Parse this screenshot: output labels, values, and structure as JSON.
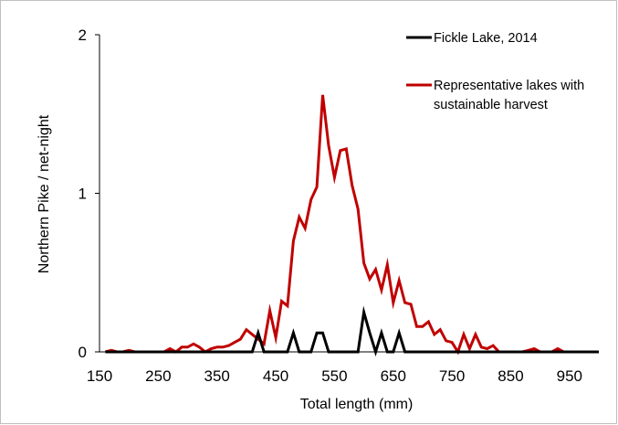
{
  "chart_data": {
    "type": "line",
    "title": "",
    "xlabel": "Total length (mm)",
    "ylabel": "Northern Pike / net-night",
    "xlim": [
      150,
      1000
    ],
    "ylim": [
      0,
      2
    ],
    "x_ticks": [
      150,
      250,
      350,
      450,
      550,
      650,
      750,
      850,
      950
    ],
    "x_tick_labels": [
      "150",
      "250",
      "350",
      "450",
      "550",
      "650",
      "750",
      "850",
      "950"
    ],
    "y_ticks": [
      0,
      1,
      2
    ],
    "y_tick_labels": [
      "0",
      "1",
      "2"
    ],
    "grid": false,
    "legend_position": "top-right",
    "series": [
      {
        "name": "Representative lakes with sustainable harvest",
        "legend_lines": [
          "Representative lakes with",
          "sustainable harvest"
        ],
        "color": "#c00000",
        "x": [
          160,
          170,
          180,
          190,
          200,
          210,
          220,
          230,
          240,
          250,
          260,
          270,
          280,
          290,
          300,
          310,
          320,
          330,
          340,
          350,
          360,
          370,
          380,
          390,
          400,
          410,
          420,
          430,
          440,
          450,
          460,
          470,
          480,
          490,
          500,
          510,
          520,
          530,
          540,
          550,
          560,
          570,
          580,
          590,
          600,
          610,
          620,
          630,
          640,
          650,
          660,
          670,
          680,
          690,
          700,
          710,
          720,
          730,
          740,
          750,
          760,
          770,
          780,
          790,
          800,
          810,
          820,
          830,
          840,
          850,
          860,
          870,
          880,
          890,
          900,
          910,
          920,
          930,
          940,
          950,
          960,
          970,
          980,
          990,
          1000
        ],
        "values": [
          0,
          0.01,
          0,
          0,
          0.01,
          0,
          0,
          0,
          0,
          0,
          0,
          0.02,
          0,
          0.03,
          0.03,
          0.05,
          0.03,
          0,
          0.02,
          0.03,
          0.03,
          0.04,
          0.06,
          0.08,
          0.14,
          0.11,
          0.08,
          0.05,
          0.26,
          0.09,
          0.32,
          0.29,
          0.7,
          0.85,
          0.78,
          0.96,
          1.04,
          1.62,
          1.3,
          1.1,
          1.27,
          1.28,
          1.05,
          0.9,
          0.56,
          0.46,
          0.52,
          0.39,
          0.55,
          0.31,
          0.45,
          0.31,
          0.3,
          0.16,
          0.16,
          0.19,
          0.11,
          0.14,
          0.07,
          0.06,
          0,
          0.11,
          0.02,
          0.11,
          0.03,
          0.02,
          0.04,
          0,
          0,
          0,
          0,
          0,
          0.01,
          0.02,
          0,
          0,
          0,
          0.02,
          0,
          0,
          0,
          0,
          0,
          0,
          0
        ]
      },
      {
        "name": "Fickle Lake, 2014",
        "legend_lines": [
          "Fickle Lake, 2014"
        ],
        "color": "#000000",
        "x": [
          160,
          170,
          180,
          190,
          200,
          210,
          220,
          230,
          240,
          250,
          260,
          270,
          280,
          290,
          300,
          310,
          320,
          330,
          340,
          350,
          360,
          370,
          380,
          390,
          400,
          410,
          420,
          430,
          440,
          450,
          460,
          470,
          480,
          490,
          500,
          510,
          520,
          530,
          540,
          550,
          560,
          570,
          580,
          590,
          600,
          610,
          620,
          630,
          640,
          650,
          660,
          670,
          680,
          690,
          700,
          710,
          720,
          730,
          740,
          750,
          760,
          770,
          780,
          790,
          800,
          810,
          820,
          830,
          840,
          850,
          860,
          870,
          880,
          890,
          900,
          910,
          920,
          930,
          940,
          950,
          960,
          970,
          980,
          990,
          1000
        ],
        "values": [
          0,
          0,
          0,
          0,
          0,
          0,
          0,
          0,
          0,
          0,
          0,
          0,
          0,
          0,
          0,
          0,
          0,
          0,
          0,
          0,
          0,
          0,
          0,
          0,
          0,
          0,
          0.12,
          0,
          0,
          0,
          0,
          0,
          0.12,
          0,
          0,
          0,
          0.12,
          0.12,
          0,
          0,
          0,
          0,
          0,
          0,
          0.25,
          0.12,
          0,
          0.12,
          0,
          0,
          0.12,
          0,
          0,
          0,
          0,
          0,
          0,
          0,
          0,
          0,
          0,
          0,
          0,
          0,
          0,
          0,
          0,
          0,
          0,
          0,
          0,
          0,
          0,
          0,
          0,
          0,
          0,
          0,
          0,
          0,
          0,
          0,
          0,
          0,
          0
        ]
      }
    ]
  }
}
